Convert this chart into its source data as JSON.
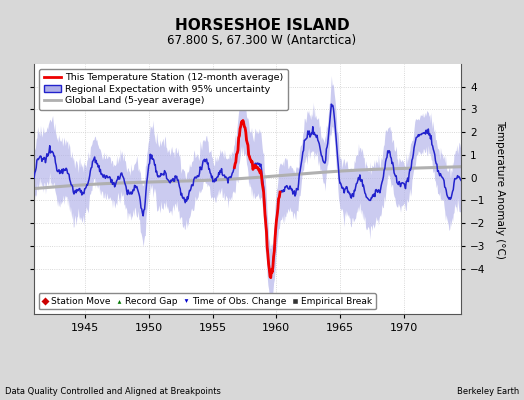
{
  "title": "HORSESHOE ISLAND",
  "subtitle": "67.800 S, 67.300 W (Antarctica)",
  "ylabel": "Temperature Anomaly (°C)",
  "footer_left": "Data Quality Controlled and Aligned at Breakpoints",
  "footer_right": "Berkeley Earth",
  "xlim": [
    1941.0,
    1974.5
  ],
  "ylim": [
    -6.0,
    5.0
  ],
  "yticks": [
    -4,
    -3,
    -2,
    -1,
    0,
    1,
    2,
    3,
    4
  ],
  "xticks": [
    1945,
    1950,
    1955,
    1960,
    1965,
    1970
  ],
  "bg_color": "#d8d8d8",
  "plot_bg_color": "#ffffff",
  "region_color": "#b0b0e8",
  "region_edge_color": "#2222cc",
  "station_color": "#ee0000",
  "global_color": "#b0b0b0",
  "legend1_items": [
    {
      "label": "This Temperature Station (12-month average)",
      "color": "#ee0000",
      "lw": 2.0
    },
    {
      "label": "Regional Expectation with 95% uncertainty",
      "color": "#2222cc",
      "lw": 1.2
    },
    {
      "label": "Global Land (5-year average)",
      "color": "#b0b0b0",
      "lw": 2.0
    }
  ],
  "legend2_items": [
    {
      "label": "Station Move",
      "marker": "D",
      "color": "#cc0000"
    },
    {
      "label": "Record Gap",
      "marker": "^",
      "color": "#007700"
    },
    {
      "label": "Time of Obs. Change",
      "marker": "v",
      "color": "#0000cc"
    },
    {
      "label": "Empirical Break",
      "marker": "s",
      "color": "#333333"
    }
  ]
}
